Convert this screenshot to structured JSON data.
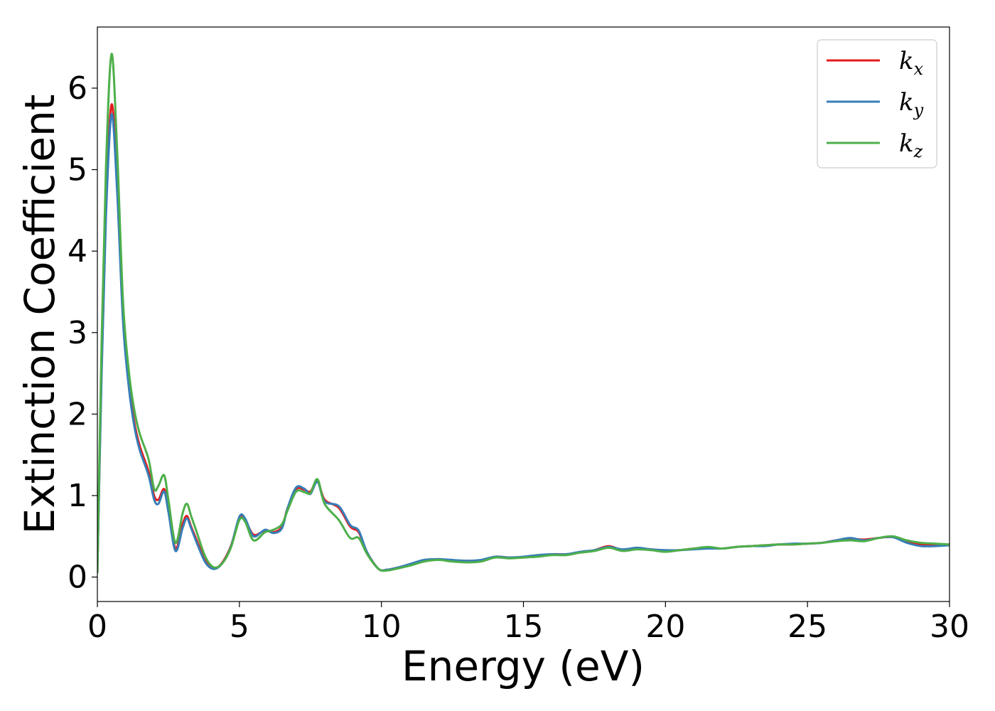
{
  "chart_data": {
    "type": "line",
    "title": "",
    "xlabel": "Energy (eV)",
    "ylabel": "Extinction Coefficient",
    "xlim": [
      0,
      30
    ],
    "ylim": [
      -0.3,
      6.75
    ],
    "xticks": [
      0,
      5,
      10,
      15,
      20,
      25,
      30
    ],
    "yticks": [
      0,
      1,
      2,
      3,
      4,
      5,
      6
    ],
    "grid": false,
    "legend_position": "top-right",
    "series": [
      {
        "name": "k_x",
        "label_base": "k",
        "label_sub": "x",
        "color": "#e41a1c",
        "x": [
          0,
          0.15,
          0.3,
          0.5,
          0.7,
          0.9,
          1.1,
          1.3,
          1.5,
          1.8,
          2.0,
          2.15,
          2.35,
          2.5,
          2.75,
          3.0,
          3.15,
          3.3,
          3.5,
          3.8,
          4.1,
          4.4,
          4.7,
          5.0,
          5.2,
          5.5,
          5.9,
          6.2,
          6.5,
          6.7,
          7.0,
          7.3,
          7.5,
          7.75,
          8.0,
          8.5,
          8.9,
          9.2,
          9.5,
          9.9,
          10.2,
          10.5,
          11.0,
          11.5,
          12.0,
          12.5,
          13.0,
          13.5,
          14.0,
          14.5,
          15.0,
          15.5,
          16.0,
          16.5,
          17.0,
          17.5,
          18.0,
          18.5,
          19.0,
          19.5,
          20.0,
          20.5,
          21.0,
          21.5,
          22.0,
          22.5,
          23.0,
          23.5,
          24.0,
          24.5,
          25.0,
          25.5,
          26.0,
          26.5,
          27.0,
          27.5,
          28.0,
          28.5,
          29.0,
          29.5,
          30.0
        ],
        "y": [
          0.05,
          2.6,
          4.5,
          5.8,
          4.8,
          3.2,
          2.4,
          1.9,
          1.6,
          1.3,
          1.0,
          0.95,
          1.08,
          0.85,
          0.35,
          0.65,
          0.75,
          0.62,
          0.45,
          0.2,
          0.1,
          0.18,
          0.38,
          0.72,
          0.7,
          0.52,
          0.57,
          0.55,
          0.62,
          0.85,
          1.08,
          1.07,
          1.05,
          1.18,
          0.95,
          0.85,
          0.62,
          0.55,
          0.3,
          0.1,
          0.09,
          0.11,
          0.15,
          0.2,
          0.22,
          0.2,
          0.2,
          0.2,
          0.25,
          0.24,
          0.24,
          0.26,
          0.28,
          0.28,
          0.3,
          0.33,
          0.38,
          0.33,
          0.35,
          0.34,
          0.32,
          0.33,
          0.35,
          0.36,
          0.35,
          0.37,
          0.38,
          0.39,
          0.4,
          0.4,
          0.41,
          0.42,
          0.45,
          0.47,
          0.46,
          0.48,
          0.49,
          0.44,
          0.4,
          0.39,
          0.4
        ]
      },
      {
        "name": "k_y",
        "label_base": "k",
        "label_sub": "y",
        "color": "#377eb8",
        "x": [
          0,
          0.15,
          0.3,
          0.5,
          0.7,
          0.9,
          1.1,
          1.3,
          1.5,
          1.8,
          2.0,
          2.15,
          2.35,
          2.5,
          2.75,
          3.0,
          3.15,
          3.3,
          3.5,
          3.8,
          4.1,
          4.4,
          4.7,
          5.0,
          5.2,
          5.5,
          5.9,
          6.2,
          6.5,
          6.7,
          7.0,
          7.3,
          7.5,
          7.75,
          8.0,
          8.5,
          8.9,
          9.2,
          9.5,
          9.9,
          10.2,
          10.5,
          11.0,
          11.5,
          12.0,
          12.5,
          13.0,
          13.5,
          14.0,
          14.5,
          15.0,
          15.5,
          16.0,
          16.5,
          17.0,
          17.5,
          18.0,
          18.5,
          19.0,
          19.5,
          20.0,
          20.5,
          21.0,
          21.5,
          22.0,
          22.5,
          23.0,
          23.5,
          24.0,
          24.5,
          25.0,
          25.5,
          26.0,
          26.5,
          27.0,
          27.5,
          28.0,
          28.5,
          29.0,
          29.5,
          30.0
        ],
        "y": [
          0.05,
          2.5,
          4.4,
          5.68,
          4.7,
          3.15,
          2.35,
          1.85,
          1.55,
          1.25,
          0.95,
          0.9,
          1.05,
          0.8,
          0.32,
          0.6,
          0.72,
          0.6,
          0.42,
          0.18,
          0.1,
          0.17,
          0.37,
          0.74,
          0.72,
          0.5,
          0.58,
          0.54,
          0.6,
          0.85,
          1.1,
          1.08,
          1.02,
          1.17,
          0.93,
          0.87,
          0.64,
          0.57,
          0.3,
          0.1,
          0.09,
          0.11,
          0.16,
          0.21,
          0.22,
          0.21,
          0.2,
          0.21,
          0.25,
          0.24,
          0.25,
          0.27,
          0.28,
          0.28,
          0.31,
          0.33,
          0.37,
          0.34,
          0.36,
          0.34,
          0.33,
          0.33,
          0.34,
          0.35,
          0.35,
          0.37,
          0.38,
          0.38,
          0.4,
          0.41,
          0.41,
          0.42,
          0.45,
          0.48,
          0.45,
          0.48,
          0.49,
          0.42,
          0.38,
          0.38,
          0.39
        ]
      },
      {
        "name": "k_z",
        "label_base": "k",
        "label_sub": "z",
        "color": "#4daf4a",
        "x": [
          0,
          0.15,
          0.3,
          0.5,
          0.7,
          0.9,
          1.1,
          1.3,
          1.5,
          1.8,
          2.0,
          2.15,
          2.35,
          2.5,
          2.75,
          3.0,
          3.15,
          3.3,
          3.5,
          3.8,
          4.1,
          4.4,
          4.7,
          5.0,
          5.2,
          5.5,
          5.9,
          6.2,
          6.5,
          6.7,
          7.0,
          7.3,
          7.5,
          7.75,
          8.0,
          8.5,
          8.9,
          9.2,
          9.5,
          9.9,
          10.2,
          10.5,
          11.0,
          11.5,
          12.0,
          12.5,
          13.0,
          13.5,
          14.0,
          14.5,
          15.0,
          15.5,
          16.0,
          16.5,
          17.0,
          17.5,
          18.0,
          18.5,
          19.0,
          19.5,
          20.0,
          20.5,
          21.0,
          21.5,
          22.0,
          22.5,
          23.0,
          23.5,
          24.0,
          24.5,
          25.0,
          25.5,
          26.0,
          26.5,
          27.0,
          27.5,
          28.0,
          28.5,
          29.0,
          29.5,
          30.0
        ],
        "y": [
          0.05,
          2.9,
          5.0,
          6.42,
          5.2,
          3.4,
          2.55,
          2.05,
          1.75,
          1.45,
          1.08,
          1.12,
          1.25,
          0.95,
          0.42,
          0.78,
          0.9,
          0.75,
          0.55,
          0.25,
          0.12,
          0.17,
          0.36,
          0.7,
          0.68,
          0.45,
          0.55,
          0.58,
          0.65,
          0.82,
          1.05,
          1.04,
          1.03,
          1.2,
          0.9,
          0.7,
          0.48,
          0.48,
          0.28,
          0.1,
          0.08,
          0.1,
          0.14,
          0.19,
          0.21,
          0.19,
          0.18,
          0.19,
          0.24,
          0.23,
          0.24,
          0.25,
          0.27,
          0.27,
          0.3,
          0.32,
          0.36,
          0.32,
          0.34,
          0.33,
          0.31,
          0.33,
          0.35,
          0.37,
          0.35,
          0.37,
          0.38,
          0.39,
          0.4,
          0.4,
          0.41,
          0.42,
          0.44,
          0.45,
          0.44,
          0.48,
          0.5,
          0.45,
          0.42,
          0.41,
          0.4
        ]
      }
    ]
  }
}
